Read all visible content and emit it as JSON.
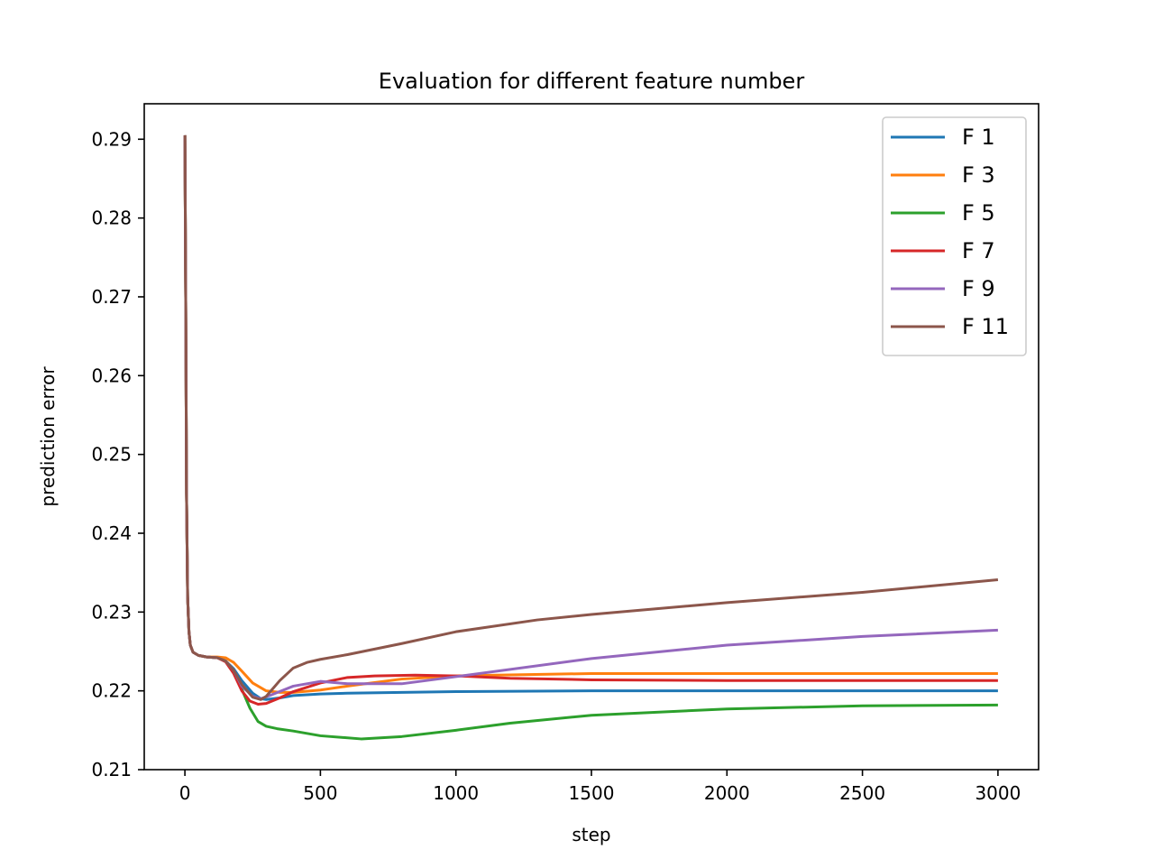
{
  "chart_data": {
    "type": "line",
    "title": "Evaluation for different feature number",
    "xlabel": "step",
    "ylabel": "prediction error",
    "xlim": [
      -150,
      3150
    ],
    "ylim": [
      0.21,
      0.2945
    ],
    "xticks": [
      0,
      500,
      1000,
      1500,
      2000,
      2500,
      3000
    ],
    "xtick_labels": [
      "0",
      "500",
      "1000",
      "1500",
      "2000",
      "2500",
      "3000"
    ],
    "yticks": [
      0.21,
      0.22,
      0.23,
      0.24,
      0.25,
      0.26,
      0.27,
      0.28,
      0.29
    ],
    "ytick_labels": [
      "0.21",
      "0.22",
      "0.23",
      "0.24",
      "0.25",
      "0.26",
      "0.27",
      "0.28",
      "0.29"
    ],
    "grid": false,
    "legend_position": "top-right",
    "series": [
      {
        "name": "F 1",
        "color": "#1f77b4",
        "x": [
          0,
          3,
          6,
          10,
          15,
          20,
          30,
          50,
          80,
          120,
          150,
          180,
          210,
          250,
          280,
          300,
          350,
          400,
          500,
          600,
          800,
          1000,
          1500,
          2000,
          2500,
          3000
        ],
        "y": [
          0.2905,
          0.27,
          0.245,
          0.232,
          0.2275,
          0.2258,
          0.2249,
          0.2245,
          0.2243,
          0.2242,
          0.2238,
          0.2228,
          0.2213,
          0.2197,
          0.219,
          0.2189,
          0.2191,
          0.2194,
          0.2196,
          0.2197,
          0.2198,
          0.2199,
          0.22,
          0.22,
          0.22,
          0.22
        ]
      },
      {
        "name": "F 3",
        "color": "#ff7f0e",
        "x": [
          0,
          3,
          6,
          10,
          15,
          20,
          30,
          50,
          80,
          120,
          150,
          180,
          210,
          250,
          300,
          350,
          400,
          500,
          600,
          800,
          1000,
          1500,
          2000,
          2500,
          3000
        ],
        "y": [
          0.2905,
          0.27,
          0.245,
          0.232,
          0.2275,
          0.2258,
          0.2249,
          0.2245,
          0.2243,
          0.2243,
          0.2242,
          0.2236,
          0.2225,
          0.221,
          0.22,
          0.2198,
          0.2198,
          0.2201,
          0.2206,
          0.2215,
          0.2219,
          0.2222,
          0.2222,
          0.2222,
          0.2222
        ]
      },
      {
        "name": "F 5",
        "color": "#2ca02c",
        "x": [
          0,
          3,
          6,
          10,
          15,
          20,
          30,
          50,
          80,
          120,
          150,
          180,
          210,
          240,
          270,
          300,
          340,
          400,
          500,
          650,
          800,
          1000,
          1200,
          1500,
          2000,
          2500,
          3000
        ],
        "y": [
          0.2905,
          0.27,
          0.245,
          0.232,
          0.2275,
          0.2258,
          0.2249,
          0.2245,
          0.2243,
          0.2242,
          0.2238,
          0.2225,
          0.2202,
          0.2178,
          0.2161,
          0.2155,
          0.2152,
          0.2149,
          0.2143,
          0.2139,
          0.2142,
          0.215,
          0.2159,
          0.2169,
          0.2177,
          0.2181,
          0.2182
        ]
      },
      {
        "name": "F 7",
        "color": "#d62728",
        "x": [
          0,
          3,
          6,
          10,
          15,
          20,
          30,
          50,
          80,
          120,
          150,
          180,
          210,
          240,
          270,
          300,
          350,
          400,
          500,
          600,
          700,
          850,
          1000,
          1200,
          1500,
          2000,
          2500,
          3000
        ],
        "y": [
          0.2905,
          0.27,
          0.245,
          0.232,
          0.2275,
          0.2258,
          0.2249,
          0.2245,
          0.2243,
          0.2242,
          0.2237,
          0.2222,
          0.22,
          0.2187,
          0.2183,
          0.2184,
          0.2191,
          0.2199,
          0.221,
          0.2217,
          0.2219,
          0.222,
          0.2219,
          0.2216,
          0.2214,
          0.2213,
          0.2213,
          0.2213
        ]
      },
      {
        "name": "F 9",
        "color": "#9467bd",
        "x": [
          0,
          3,
          6,
          10,
          15,
          20,
          30,
          50,
          80,
          120,
          150,
          180,
          210,
          250,
          280,
          320,
          400,
          500,
          600,
          800,
          1000,
          1500,
          2000,
          2500,
          3000
        ],
        "y": [
          0.2905,
          0.27,
          0.245,
          0.232,
          0.2275,
          0.2258,
          0.2249,
          0.2245,
          0.2243,
          0.2242,
          0.2238,
          0.2226,
          0.2206,
          0.2193,
          0.219,
          0.2195,
          0.2206,
          0.2212,
          0.2209,
          0.2209,
          0.2218,
          0.2241,
          0.2258,
          0.2269,
          0.2277
        ]
      },
      {
        "name": "F 11",
        "color": "#8c564b",
        "x": [
          0,
          3,
          6,
          10,
          15,
          20,
          30,
          50,
          80,
          120,
          150,
          180,
          210,
          250,
          280,
          300,
          350,
          400,
          450,
          500,
          600,
          800,
          1000,
          1300,
          1500,
          2000,
          2500,
          3000
        ],
        "y": [
          0.2905,
          0.27,
          0.245,
          0.232,
          0.2275,
          0.2258,
          0.2249,
          0.2245,
          0.2243,
          0.2242,
          0.2238,
          0.2226,
          0.2208,
          0.2192,
          0.2189,
          0.2193,
          0.2213,
          0.2229,
          0.2236,
          0.224,
          0.2246,
          0.226,
          0.2275,
          0.229,
          0.2297,
          0.2312,
          0.2325,
          0.2341
        ]
      }
    ]
  }
}
